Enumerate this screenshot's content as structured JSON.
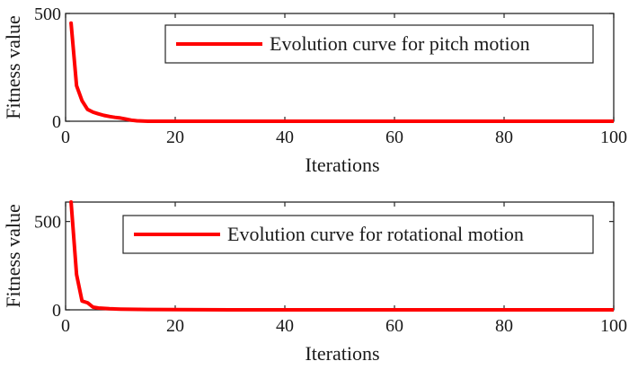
{
  "chart_data": [
    {
      "type": "line",
      "xlabel": "Iterations",
      "ylabel": "Fitness value",
      "xlim": [
        0,
        100
      ],
      "ylim": [
        0,
        500
      ],
      "xticks": [
        0,
        20,
        40,
        60,
        80,
        100
      ],
      "yticks": [
        0,
        500
      ],
      "grid": false,
      "legend_position": "top-right",
      "series": [
        {
          "name": "Evolution curve for pitch motion",
          "color": "#ff0000",
          "x": [
            1,
            2,
            3,
            4,
            5,
            6,
            7,
            8,
            9,
            10,
            11,
            12,
            13,
            14,
            15,
            20,
            30,
            40,
            50,
            60,
            70,
            80,
            90,
            100
          ],
          "y": [
            455,
            165,
            95,
            55,
            42,
            34,
            27,
            22,
            18,
            15,
            10,
            5,
            2,
            1,
            0,
            0,
            0,
            0,
            0,
            0,
            0,
            0,
            0,
            0
          ]
        }
      ]
    },
    {
      "type": "line",
      "xlabel": "Iterations",
      "ylabel": "Fitness value",
      "xlim": [
        0,
        100
      ],
      "ylim": [
        0,
        610
      ],
      "xticks": [
        0,
        20,
        40,
        60,
        80,
        100
      ],
      "yticks": [
        0,
        500
      ],
      "grid": false,
      "legend_position": "top-right",
      "series": [
        {
          "name": "Evolution curve for rotational motion",
          "color": "#ff0000",
          "x": [
            1,
            2,
            3,
            4,
            5,
            6,
            7,
            8,
            10,
            15,
            20,
            30,
            40,
            50,
            60,
            70,
            80,
            90,
            100
          ],
          "y": [
            610,
            200,
            50,
            40,
            15,
            10,
            8,
            6,
            4,
            2,
            1,
            0,
            0,
            0,
            0,
            0,
            0,
            0,
            0
          ]
        }
      ]
    }
  ]
}
